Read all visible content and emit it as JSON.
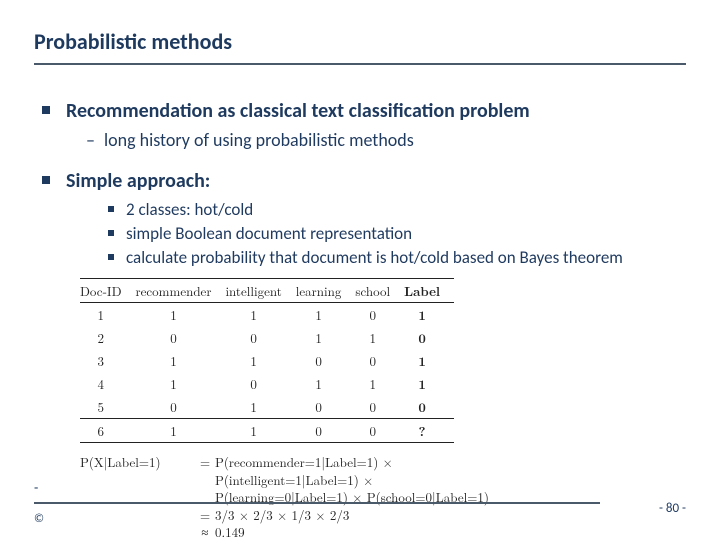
{
  "title": "Probabilistic methods",
  "bullets": {
    "b1a": "Recommendation as classical text classification problem",
    "b1a_sub": "long history of using probabilistic methods",
    "b1b": "Simple approach:",
    "b1b_sub1": "2 classes: hot/cold",
    "b1b_sub2": "simple Boolean document representation",
    "b1b_sub3": "calculate probability that document is hot/cold based on Bayes theorem"
  },
  "table": {
    "headers": [
      "Doc-ID",
      "recommender",
      "intelligent",
      "learning",
      "school",
      "Label"
    ],
    "rows": [
      [
        "1",
        "1",
        "1",
        "1",
        "0",
        "1"
      ],
      [
        "2",
        "0",
        "0",
        "1",
        "1",
        "0"
      ],
      [
        "3",
        "1",
        "1",
        "0",
        "0",
        "1"
      ],
      [
        "4",
        "1",
        "0",
        "1",
        "1",
        "1"
      ],
      [
        "5",
        "0",
        "1",
        "0",
        "0",
        "0"
      ]
    ],
    "lastrow": [
      "6",
      "1",
      "1",
      "0",
      "0",
      "?"
    ]
  },
  "eq": {
    "lhs": "P(X|Label=1)",
    "r1": "P(recommender=1|Label=1) ×",
    "r2": "P(intelligent=1|Label=1) ×",
    "r3": "P(learning=0|Label=1) × P(school=0|Label=1)",
    "r4": "3/3 × 2/3 × 1/3 × 2/3",
    "r5": "0.149"
  },
  "footer": {
    "copyright": "©",
    "page": "- 80 -",
    "dash": "-"
  }
}
